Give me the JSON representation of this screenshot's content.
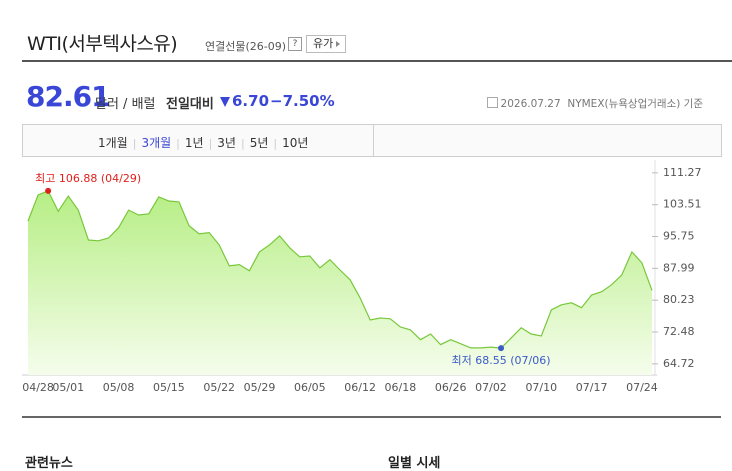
{
  "header": {
    "title": "WTI(서부텍사스유)",
    "contract": "연결선물(26-09)",
    "help": "?",
    "category_button": "유가"
  },
  "quote": {
    "price": "82.61",
    "unit": "달러 / 배럴",
    "change_label": "전일대비",
    "change": "6.70",
    "change_pct": "−7.50%",
    "date": "2026.07.27",
    "source": "NYMEX(뉴욕상업거래소) 기준"
  },
  "tabs": {
    "items": [
      "1개월",
      "3개월",
      "1년",
      "3년",
      "5년",
      "10년"
    ],
    "selected": 1
  },
  "chart_data": {
    "type": "area",
    "categories": [
      null,
      "04/28",
      null,
      null,
      "05/01",
      null,
      null,
      null,
      null,
      "05/08",
      null,
      null,
      null,
      null,
      "05/15",
      null,
      null,
      null,
      null,
      "05/22",
      null,
      null,
      null,
      "05/29",
      null,
      null,
      null,
      null,
      "06/05",
      null,
      null,
      null,
      null,
      "06/12",
      null,
      null,
      null,
      "06/18",
      null,
      null,
      null,
      null,
      "06/26",
      null,
      null,
      null,
      "07/02",
      null,
      null,
      null,
      null,
      "07/10",
      null,
      null,
      null,
      null,
      "07/17",
      null,
      null,
      null,
      null,
      "07/24",
      null
    ],
    "values": [
      99.5,
      105.9,
      106.88,
      101.9,
      105.6,
      102.2,
      94.9,
      94.7,
      95.4,
      97.9,
      102.2,
      101.0,
      101.3,
      105.4,
      104.4,
      104.2,
      98.4,
      96.4,
      96.7,
      93.7,
      88.6,
      88.9,
      87.4,
      92.0,
      93.7,
      95.9,
      93.0,
      90.8,
      91.0,
      88.1,
      90.1,
      87.6,
      85.2,
      80.8,
      75.4,
      75.9,
      75.7,
      73.7,
      73.0,
      70.6,
      72.0,
      69.4,
      70.6,
      69.6,
      68.6,
      68.6,
      68.8,
      68.55,
      71.0,
      73.5,
      72.0,
      71.5,
      77.9,
      79.1,
      79.6,
      78.4,
      81.5,
      82.3,
      84.0,
      86.4,
      92.0,
      89.31,
      82.61
    ],
    "color": "#78c83c",
    "ylim": [
      62.0,
      114.4
    ],
    "yticks": [
      111.27,
      103.51,
      95.75,
      87.99,
      80.23,
      72.48,
      64.72
    ],
    "annotations": {
      "high": "최고 106.88 (04/29)",
      "low": "최저 68.55 (07/06)"
    },
    "high_color": "#e0201c",
    "low_color": "#3a5bc7"
  },
  "sections": [
    "관련뉴스",
    "일별 시세"
  ]
}
